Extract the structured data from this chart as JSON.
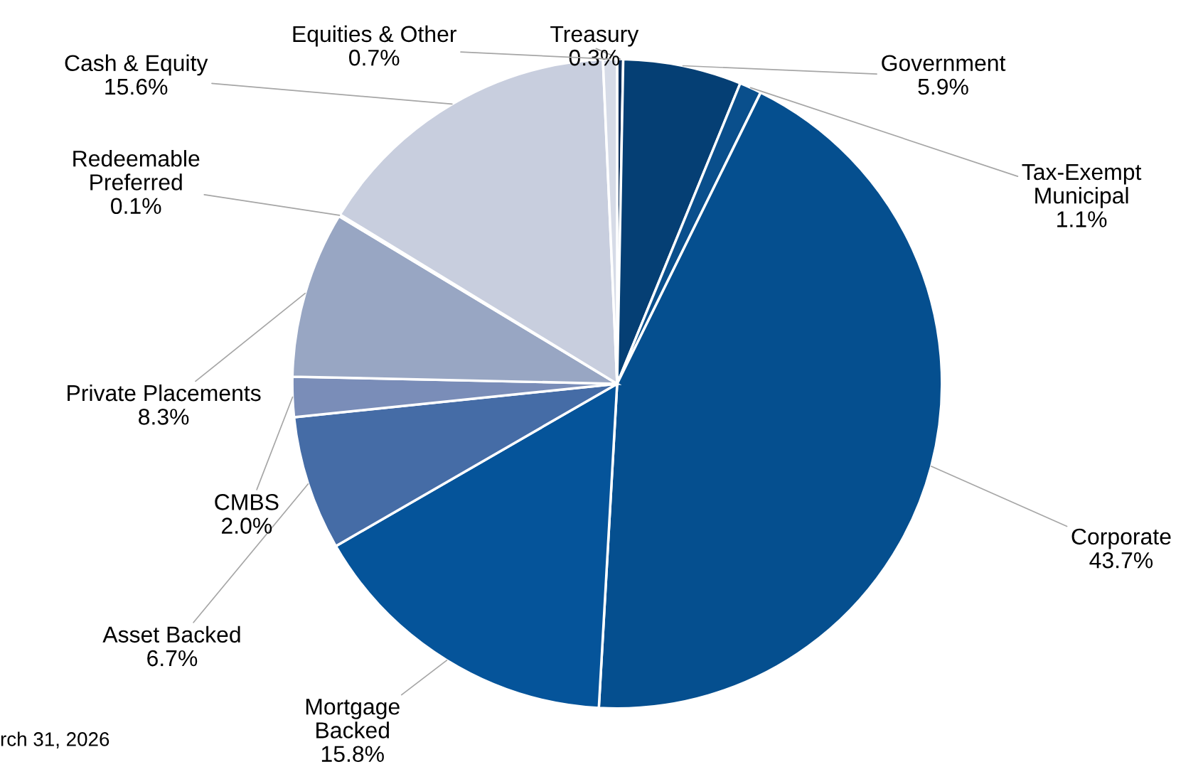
{
  "chart_data": {
    "type": "pie",
    "categories": [
      "Treasury",
      "Government",
      "Tax-Exempt\nMunicipal",
      "Corporate",
      "Mortgage\nBacked",
      "Asset Backed",
      "CMBS",
      "Private Placements",
      "Redeemable\nPreferred",
      "Cash & Equity",
      "Equities & Other"
    ],
    "values": [
      0.3,
      5.9,
      1.1,
      43.7,
      15.8,
      6.7,
      2.0,
      8.3,
      0.1,
      15.6,
      0.7
    ],
    "value_labels": [
      "0.3%",
      "5.9%",
      "1.1%",
      "43.7%",
      "15.8%",
      "6.7%",
      "2.0%",
      "8.3%",
      "0.1%",
      "15.6%",
      "0.7%"
    ],
    "colors": [
      "#0b2f5c",
      "#053f74",
      "#0a4f8c",
      "#054f8f",
      "#05549a",
      "#456ca6",
      "#7a8db8",
      "#98a6c3",
      "#aeb8d0",
      "#c8cede",
      "#d6dbe7"
    ],
    "annotations": [
      "rch 31, 2026"
    ],
    "legend": false
  }
}
